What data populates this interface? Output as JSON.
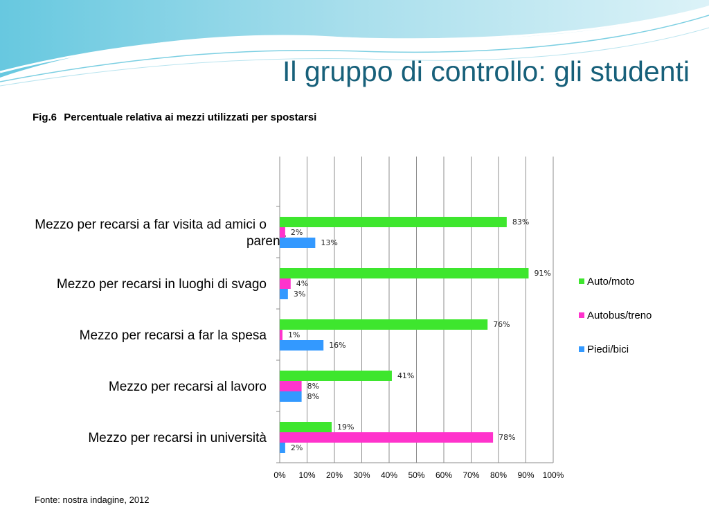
{
  "slide": {
    "title": "Il gruppo di controllo: gli studenti",
    "figure_label": "Fig.6",
    "figure_caption": "Percentuale relativa ai mezzi utilizzati per spostarsi",
    "source_note": "Fonte: nostra indagine, 2012"
  },
  "colors": {
    "title": "#17607a",
    "wave_dark": "#3fb3cf",
    "wave_light": "#bfe6f0"
  },
  "chart_data": {
    "type": "bar",
    "orientation": "horizontal",
    "title": "",
    "xlabel": "",
    "ylabel": "",
    "xlim": [
      0,
      100
    ],
    "x_ticks": [
      "0%",
      "10%",
      "20%",
      "30%",
      "40%",
      "50%",
      "60%",
      "70%",
      "80%",
      "90%",
      "100%"
    ],
    "grid": true,
    "legend_position": "right",
    "categories": [
      "Mezzo per recarsi a far visita ad amici o parenti",
      "Mezzo per recarsi in luoghi di svago",
      "Mezzo per recarsi a far la spesa",
      "Mezzo per recarsi al lavoro",
      "Mezzo per recarsi in università"
    ],
    "series": [
      {
        "name": "Auto/moto",
        "color": "#3ee62e",
        "values": [
          83,
          91,
          76,
          41,
          19
        ],
        "labels": [
          "83%",
          "91%",
          "76%",
          "41%",
          "19%"
        ]
      },
      {
        "name": "Autobus/treno",
        "color": "#ff33cc",
        "values": [
          2,
          4,
          1,
          8,
          78
        ],
        "labels": [
          "2%",
          "4%",
          "1%",
          "8%",
          "78%"
        ]
      },
      {
        "name": "Piedi/bici",
        "color": "#3399ff",
        "values": [
          13,
          3,
          16,
          8,
          2
        ],
        "labels": [
          "13%",
          "3%",
          "16%",
          "8%",
          "2%"
        ]
      }
    ]
  }
}
